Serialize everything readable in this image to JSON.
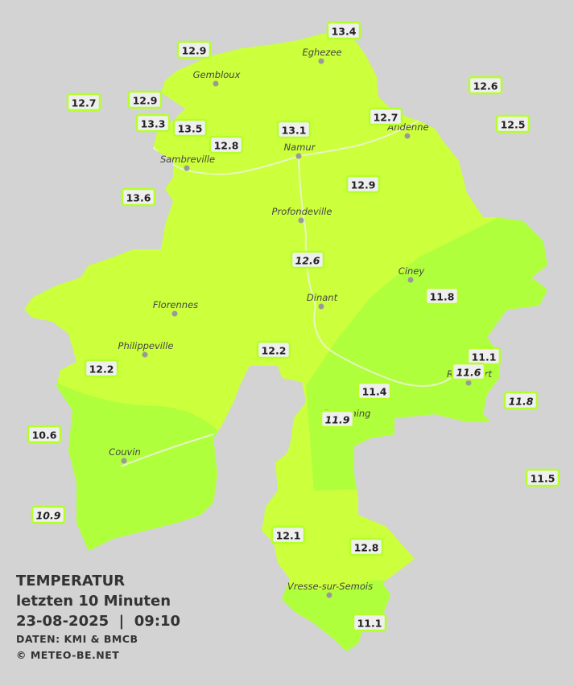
{
  "title": {
    "heading": "TEMPERATUR",
    "period": "letzten 10 Minuten",
    "timestamp": "23-08-2025  |  09:10",
    "source": "DATEN: KMI & BMCB",
    "copyright": "© METEO-BE.NET"
  },
  "cities": [
    "Eghezee",
    "Gembloux",
    "Andenne",
    "Namur",
    "Sambreville",
    "Profondeville",
    "Ciney",
    "Dinant",
    "Florennes",
    "Philippeville",
    "Rochefort",
    "Beauraing",
    "Couvin",
    "Vresse-sur-Semois"
  ],
  "stations": [
    "13.4",
    "12.9",
    "12.7",
    "12.9",
    "12.6",
    "13.3",
    "13.5",
    "13.1",
    "12.7",
    "12.5",
    "12.8",
    "12.9",
    "13.6",
    "12.6",
    "11.8",
    "12.2",
    "11.1",
    "11.6",
    "12.2",
    "11.4",
    "11.8",
    "11.9",
    "10.6",
    "11.5",
    "10.9",
    "12.1",
    "12.8",
    "11.1"
  ]
}
